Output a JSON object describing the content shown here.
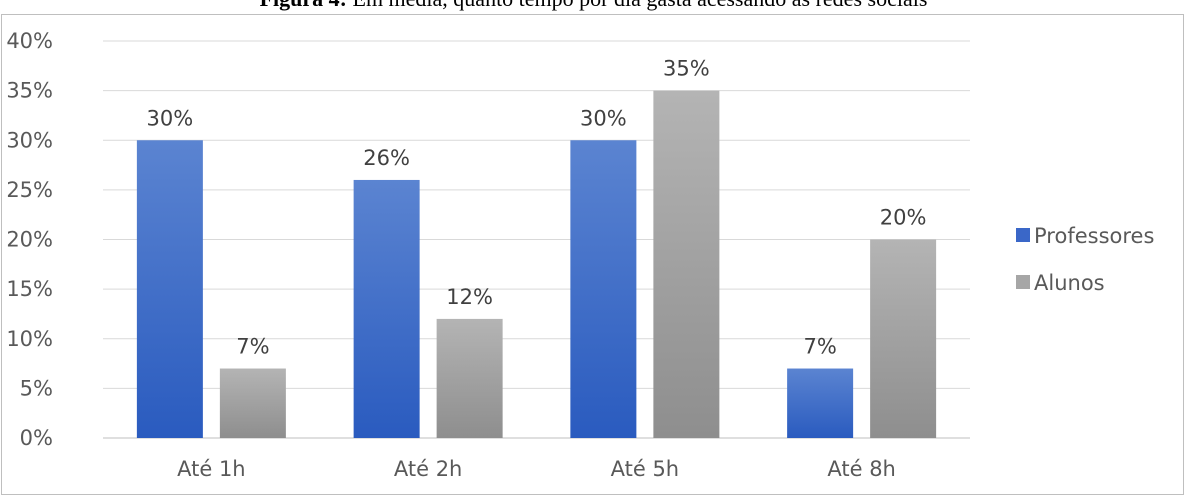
{
  "figure": {
    "caption_label": "Figura 4:",
    "caption_text": " Em média, quanto tempo por dia gasta acessando as redes sociais"
  },
  "chart_data": {
    "type": "bar",
    "title": "",
    "xlabel": "",
    "ylabel": "",
    "categories": [
      "Até 1h",
      "Até 2h",
      "Até 5h",
      "Até  8h"
    ],
    "series": [
      {
        "name": "Professores",
        "values": [
          30,
          26,
          30,
          7
        ],
        "color": "#3a67c8"
      },
      {
        "name": "Alunos",
        "values": [
          7,
          12,
          35,
          20
        ],
        "color": "#a6a6a6"
      }
    ],
    "ylim": [
      0,
      40
    ],
    "yticks": [
      0,
      5,
      10,
      15,
      20,
      25,
      30,
      35,
      40
    ],
    "ytick_suffix": "%",
    "data_labels": true,
    "grid": true,
    "legend_position": "right"
  }
}
